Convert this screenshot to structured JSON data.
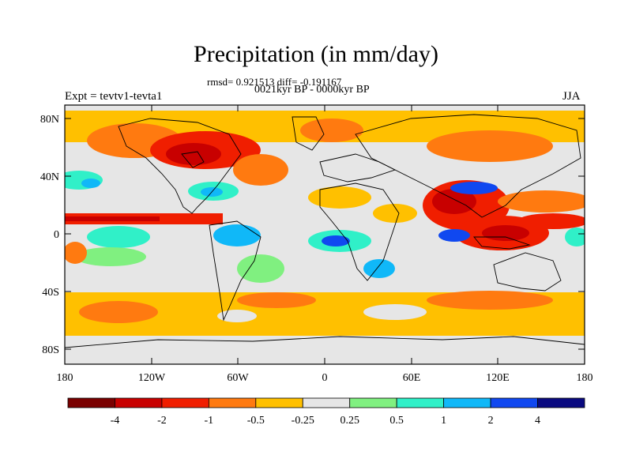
{
  "title": "Precipitation (in mm/day)",
  "stats_line": "rmsd= 0.921513 diff= -0.191167",
  "period_line": "0021kyr BP - 0000kyr BP",
  "experiment_label": "Expt = tevtv1-tevta1",
  "season_label": "JJA",
  "lat_labels": [
    "80N",
    "40N",
    "0",
    "40S",
    "80S"
  ],
  "lon_labels": [
    "180",
    "120W",
    "60W",
    "0",
    "60E",
    "120E",
    "180"
  ],
  "colorbar": {
    "colors": [
      "#7a0000",
      "#c80000",
      "#f01e00",
      "#ff7a10",
      "#ffc000",
      "#e6e6e6",
      "#80f080",
      "#30f0c8",
      "#10b8f8",
      "#1048f0",
      "#0a0a80"
    ],
    "labels": [
      "-4",
      "-2",
      "-1",
      "-0.5",
      "-0.25",
      "0.25",
      "0.5",
      "1",
      "2",
      "4"
    ]
  }
}
